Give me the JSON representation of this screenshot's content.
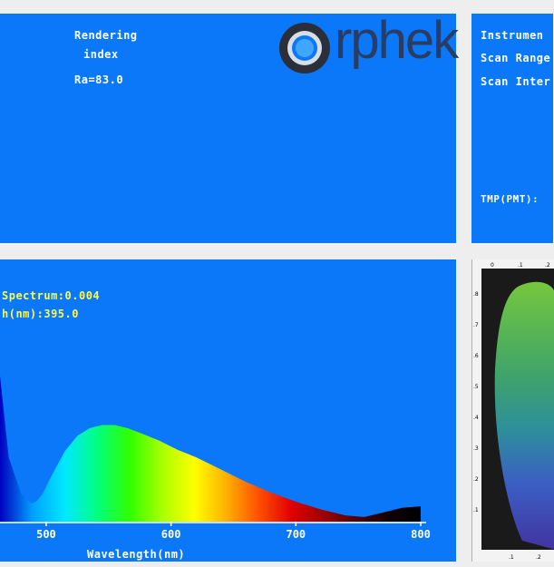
{
  "rendering_panel": {
    "label_line1": "Rendering",
    "label_line2": "index",
    "ra_value": "Ra=83.0",
    "logo_text": "rphek"
  },
  "instrument_panel": {
    "line1": "Instrumen",
    "line2": "Scan Range",
    "line3": "Scan Inter",
    "tmp_line": "TMP(PMT):"
  },
  "spectrum_panel": {
    "peak_label": "Spectrum:0.004",
    "wavelength_label": "h(nm):395.0",
    "x_axis_label": "Wavelength(nm)"
  },
  "chart_data": {
    "type": "area",
    "xlabel": "Wavelength(nm)",
    "ylabel": "",
    "xlim": [
      463,
      800
    ],
    "ylim": [
      0,
      1
    ],
    "x_ticks": [
      "500",
      "600",
      "700",
      "800"
    ],
    "x": [
      463,
      470,
      480,
      488,
      492,
      497,
      505,
      515,
      525,
      535,
      545,
      555,
      565,
      575,
      590,
      605,
      620,
      640,
      660,
      680,
      700,
      720,
      740,
      755,
      770,
      785,
      800
    ],
    "y": [
      0.95,
      0.42,
      0.18,
      0.12,
      0.13,
      0.18,
      0.31,
      0.46,
      0.56,
      0.61,
      0.63,
      0.63,
      0.61,
      0.58,
      0.53,
      0.47,
      0.42,
      0.34,
      0.26,
      0.19,
      0.13,
      0.08,
      0.04,
      0.03,
      0.06,
      0.09,
      0.1
    ],
    "colors": {
      "fill_gradient": [
        "#0000c0",
        "#00a0ff",
        "#00e8ff",
        "#00ff80",
        "#30ff00",
        "#a8ff00",
        "#ffff00",
        "#ffb000",
        "#ff5000",
        "#e00000",
        "#a00000",
        "#500000",
        "#100000",
        "#000000"
      ]
    }
  },
  "cie_panel": {
    "top_ticks": [
      "0",
      ".1",
      ".2"
    ],
    "left_ticks": [
      ".8",
      ".7",
      ".6",
      ".5",
      ".4",
      ".3",
      ".2",
      ".1"
    ],
    "bottom_ticks": [
      ".1",
      ".2"
    ]
  },
  "colors": {
    "panel_blue": "#0a78f8",
    "background": "#eeeeee",
    "label_white": "#ffffff",
    "label_yellow": "#fffb4a"
  }
}
